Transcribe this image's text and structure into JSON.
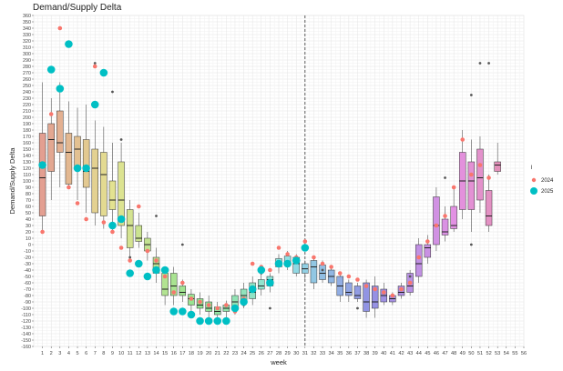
{
  "chart_data": {
    "type": "boxplot",
    "title": "Demand/Supply Delta",
    "xlabel": "week",
    "ylabel": "Demand/Supply Delta",
    "xlim": [
      0,
      56
    ],
    "ylim": [
      -160,
      360
    ],
    "ytick_step": 10,
    "xticks": [
      1,
      2,
      3,
      4,
      5,
      6,
      7,
      8,
      9,
      10,
      11,
      12,
      13,
      14,
      15,
      16,
      17,
      18,
      19,
      20,
      21,
      22,
      23,
      24,
      25,
      26,
      27,
      28,
      29,
      30,
      31,
      32,
      33,
      34,
      35,
      36,
      37,
      38,
      39,
      40,
      41,
      42,
      43,
      44,
      45,
      46,
      47,
      48,
      49,
      50,
      51,
      52,
      53,
      54,
      55,
      56
    ],
    "vline_week": 31,
    "grid": true,
    "legend": {
      "title": "l",
      "position": "right",
      "entries": [
        {
          "label": "2024",
          "color": "#F8766D"
        },
        {
          "label": "2025",
          "color": "#00BFC4"
        }
      ]
    },
    "boxes": [
      {
        "week": 1,
        "q1": 45,
        "median": 105,
        "q3": 175,
        "lo": 20,
        "hi": 255
      },
      {
        "week": 2,
        "q1": 115,
        "median": 165,
        "q3": 190,
        "lo": 70,
        "hi": 230
      },
      {
        "week": 3,
        "q1": 145,
        "median": 160,
        "q3": 210,
        "lo": 90,
        "hi": 255
      },
      {
        "week": 4,
        "q1": 95,
        "median": 145,
        "q3": 175,
        "lo": 90,
        "hi": 225
      },
      {
        "week": 5,
        "q1": 120,
        "median": 150,
        "q3": 170,
        "lo": 70,
        "hi": 215
      },
      {
        "week": 6,
        "q1": 90,
        "median": 115,
        "q3": 165,
        "lo": 50,
        "hi": 220
      },
      {
        "week": 7,
        "q1": 50,
        "median": 120,
        "q3": 150,
        "lo": 30,
        "hi": 195
      },
      {
        "week": 8,
        "q1": 45,
        "median": 110,
        "q3": 145,
        "lo": 25,
        "hi": 185
      },
      {
        "week": 9,
        "q1": 55,
        "median": 70,
        "q3": 100,
        "lo": 20,
        "hi": 160
      },
      {
        "week": 10,
        "q1": 30,
        "median": 70,
        "q3": 130,
        "lo": 10,
        "hi": 160
      },
      {
        "week": 11,
        "q1": -5,
        "median": 30,
        "q3": 55,
        "lo": -25,
        "hi": 70
      },
      {
        "week": 12,
        "q1": 5,
        "median": 10,
        "q3": 30,
        "lo": -5,
        "hi": 50
      },
      {
        "week": 13,
        "q1": -10,
        "median": 0,
        "q3": 10,
        "lo": -25,
        "hi": 20
      },
      {
        "week": 14,
        "q1": -45,
        "median": -30,
        "q3": -20,
        "lo": -60,
        "hi": -5
      },
      {
        "week": 15,
        "q1": -80,
        "median": -70,
        "q3": -45,
        "lo": -95,
        "hi": -35
      },
      {
        "week": 16,
        "q1": -80,
        "median": -65,
        "q3": -45,
        "lo": -95,
        "hi": -35
      },
      {
        "week": 17,
        "q1": -80,
        "median": -75,
        "q3": -65,
        "lo": -90,
        "hi": -55
      },
      {
        "week": 18,
        "q1": -95,
        "median": -85,
        "q3": -78,
        "lo": -105,
        "hi": -70
      },
      {
        "week": 19,
        "q1": -100,
        "median": -95,
        "q3": -85,
        "lo": -110,
        "hi": -75
      },
      {
        "week": 20,
        "q1": -105,
        "median": -100,
        "q3": -90,
        "lo": -115,
        "hi": -80
      },
      {
        "week": 21,
        "q1": -110,
        "median": -105,
        "q3": -98,
        "lo": -120,
        "hi": -90
      },
      {
        "week": 22,
        "q1": -105,
        "median": -100,
        "q3": -95,
        "lo": -115,
        "hi": -88
      },
      {
        "week": 23,
        "q1": -100,
        "median": -90,
        "q3": -80,
        "lo": -110,
        "hi": -70
      },
      {
        "week": 24,
        "q1": -90,
        "median": -80,
        "q3": -70,
        "lo": -100,
        "hi": -60
      },
      {
        "week": 25,
        "q1": -85,
        "median": -75,
        "q3": -60,
        "lo": -95,
        "hi": -50
      },
      {
        "week": 26,
        "q1": -70,
        "median": -65,
        "q3": -55,
        "lo": -80,
        "hi": -40
      },
      {
        "week": 27,
        "q1": -65,
        "median": -55,
        "q3": -50,
        "lo": -75,
        "hi": -45
      },
      {
        "week": 28,
        "q1": -35,
        "median": -28,
        "q3": -22,
        "lo": -45,
        "hi": -15
      },
      {
        "week": 29,
        "q1": -32,
        "median": -28,
        "q3": -18,
        "lo": -40,
        "hi": -10
      },
      {
        "week": 30,
        "q1": -45,
        "median": -30,
        "q3": -20,
        "lo": -50,
        "hi": -15
      },
      {
        "week": 31,
        "q1": -45,
        "median": -38,
        "q3": -30,
        "lo": -55,
        "hi": -25
      },
      {
        "week": 32,
        "q1": -60,
        "median": -35,
        "q3": -25,
        "lo": -70,
        "hi": -20
      },
      {
        "week": 33,
        "q1": -55,
        "median": -45,
        "q3": -32,
        "lo": -60,
        "hi": -25
      },
      {
        "week": 34,
        "q1": -60,
        "median": -50,
        "q3": -40,
        "lo": -65,
        "hi": -35
      },
      {
        "week": 35,
        "q1": -80,
        "median": -65,
        "q3": -50,
        "lo": -90,
        "hi": -45
      },
      {
        "week": 36,
        "q1": -80,
        "median": -75,
        "q3": -60,
        "lo": -90,
        "hi": -55
      },
      {
        "week": 37,
        "q1": -85,
        "median": -80,
        "q3": -65,
        "lo": -90,
        "hi": -60
      },
      {
        "week": 38,
        "q1": -105,
        "median": -90,
        "q3": -60,
        "lo": -115,
        "hi": -55
      },
      {
        "week": 39,
        "q1": -100,
        "median": -90,
        "q3": -65,
        "lo": -115,
        "hi": -50
      },
      {
        "week": 40,
        "q1": -90,
        "median": -80,
        "q3": -70,
        "lo": -95,
        "hi": -60
      },
      {
        "week": 41,
        "q1": -90,
        "median": -85,
        "q3": -80,
        "lo": -95,
        "hi": -75
      },
      {
        "week": 42,
        "q1": -80,
        "median": -75,
        "q3": -65,
        "lo": -85,
        "hi": -60
      },
      {
        "week": 43,
        "q1": -75,
        "median": -65,
        "q3": -45,
        "lo": -80,
        "hi": -40
      },
      {
        "week": 44,
        "q1": -50,
        "median": -30,
        "q3": 0,
        "lo": -60,
        "hi": 10
      },
      {
        "week": 45,
        "q1": -20,
        "median": -5,
        "q3": 0,
        "lo": -30,
        "hi": 15
      },
      {
        "week": 46,
        "q1": 0,
        "median": 30,
        "q3": 75,
        "lo": -10,
        "hi": 90
      },
      {
        "week": 47,
        "q1": 15,
        "median": 20,
        "q3": 40,
        "lo": 5,
        "hi": 60
      },
      {
        "week": 48,
        "q1": 25,
        "median": 30,
        "q3": 60,
        "lo": 20,
        "hi": 90
      },
      {
        "week": 49,
        "q1": 55,
        "median": 100,
        "q3": 145,
        "lo": 40,
        "hi": 180
      },
      {
        "week": 50,
        "q1": 55,
        "median": 100,
        "q3": 130,
        "lo": 20,
        "hi": 165
      },
      {
        "week": 51,
        "q1": 70,
        "median": 105,
        "q3": 150,
        "lo": 50,
        "hi": 170
      },
      {
        "week": 52,
        "q1": 30,
        "median": 45,
        "q3": 85,
        "lo": 20,
        "hi": 110
      },
      {
        "week": 53,
        "q1": 115,
        "median": 125,
        "q3": 130,
        "lo": 110,
        "hi": 160
      }
    ],
    "outliers": [
      {
        "week": 7,
        "y": 285
      },
      {
        "week": 9,
        "y": 240
      },
      {
        "week": 10,
        "y": 165
      },
      {
        "week": 11,
        "y": -20
      },
      {
        "week": 14,
        "y": 45
      },
      {
        "week": 17,
        "y": 0
      },
      {
        "week": 24,
        "y": -95
      },
      {
        "week": 26,
        "y": -45
      },
      {
        "week": 27,
        "y": -100
      },
      {
        "week": 33,
        "y": -40
      },
      {
        "week": 37,
        "y": -100
      },
      {
        "week": 43,
        "y": -50
      },
      {
        "week": 47,
        "y": 105
      },
      {
        "week": 50,
        "y": 0
      },
      {
        "week": 50,
        "y": 235
      },
      {
        "week": 51,
        "y": 285
      },
      {
        "week": 52,
        "y": 285
      }
    ],
    "series": [
      {
        "name": "2024",
        "color": "#F8766D",
        "points": [
          [
            1,
            20
          ],
          [
            2,
            205
          ],
          [
            3,
            340
          ],
          [
            4,
            90
          ],
          [
            5,
            65
          ],
          [
            6,
            40
          ],
          [
            7,
            280
          ],
          [
            8,
            35
          ],
          [
            9,
            20
          ],
          [
            10,
            -5
          ],
          [
            11,
            -25
          ],
          [
            12,
            60
          ],
          [
            13,
            -10
          ],
          [
            14,
            -25
          ],
          [
            15,
            -50
          ],
          [
            16,
            -75
          ],
          [
            17,
            -60
          ],
          [
            18,
            -85
          ],
          [
            19,
            -90
          ],
          [
            20,
            -95
          ],
          [
            21,
            -100
          ],
          [
            22,
            -95
          ],
          [
            23,
            -105
          ],
          [
            24,
            -85
          ],
          [
            25,
            -30
          ],
          [
            26,
            -35
          ],
          [
            27,
            -40
          ],
          [
            28,
            -5
          ],
          [
            29,
            -15
          ],
          [
            30,
            -20
          ],
          [
            31,
            5
          ],
          [
            32,
            -20
          ],
          [
            33,
            -30
          ],
          [
            34,
            -35
          ],
          [
            35,
            -45
          ],
          [
            36,
            -50
          ],
          [
            37,
            -55
          ],
          [
            38,
            -65
          ],
          [
            39,
            -70
          ],
          [
            40,
            -75
          ],
          [
            41,
            -80
          ],
          [
            42,
            -70
          ],
          [
            43,
            -60
          ],
          [
            44,
            -20
          ],
          [
            45,
            5
          ],
          [
            46,
            30
          ],
          [
            47,
            45
          ],
          [
            48,
            90
          ],
          [
            49,
            165
          ],
          [
            50,
            110
          ],
          [
            51,
            125
          ],
          [
            52,
            105
          ]
        ]
      },
      {
        "name": "2025",
        "color": "#00BFC4",
        "points": [
          [
            1,
            125
          ],
          [
            2,
            275
          ],
          [
            3,
            245
          ],
          [
            4,
            315
          ],
          [
            5,
            120
          ],
          [
            6,
            120
          ],
          [
            7,
            220
          ],
          [
            8,
            270
          ],
          [
            9,
            30
          ],
          [
            10,
            40
          ],
          [
            11,
            -45
          ],
          [
            12,
            -30
          ],
          [
            13,
            -50
          ],
          [
            14,
            -40
          ],
          [
            15,
            -40
          ],
          [
            16,
            -105
          ],
          [
            17,
            -105
          ],
          [
            18,
            -110
          ],
          [
            19,
            -120
          ],
          [
            20,
            -120
          ],
          [
            21,
            -120
          ],
          [
            22,
            -120
          ],
          [
            23,
            -100
          ],
          [
            24,
            -90
          ],
          [
            25,
            -70
          ],
          [
            26,
            -40
          ],
          [
            27,
            -60
          ],
          [
            28,
            -30
          ],
          [
            29,
            -30
          ],
          [
            30,
            -25
          ],
          [
            31,
            -5
          ]
        ]
      }
    ]
  }
}
